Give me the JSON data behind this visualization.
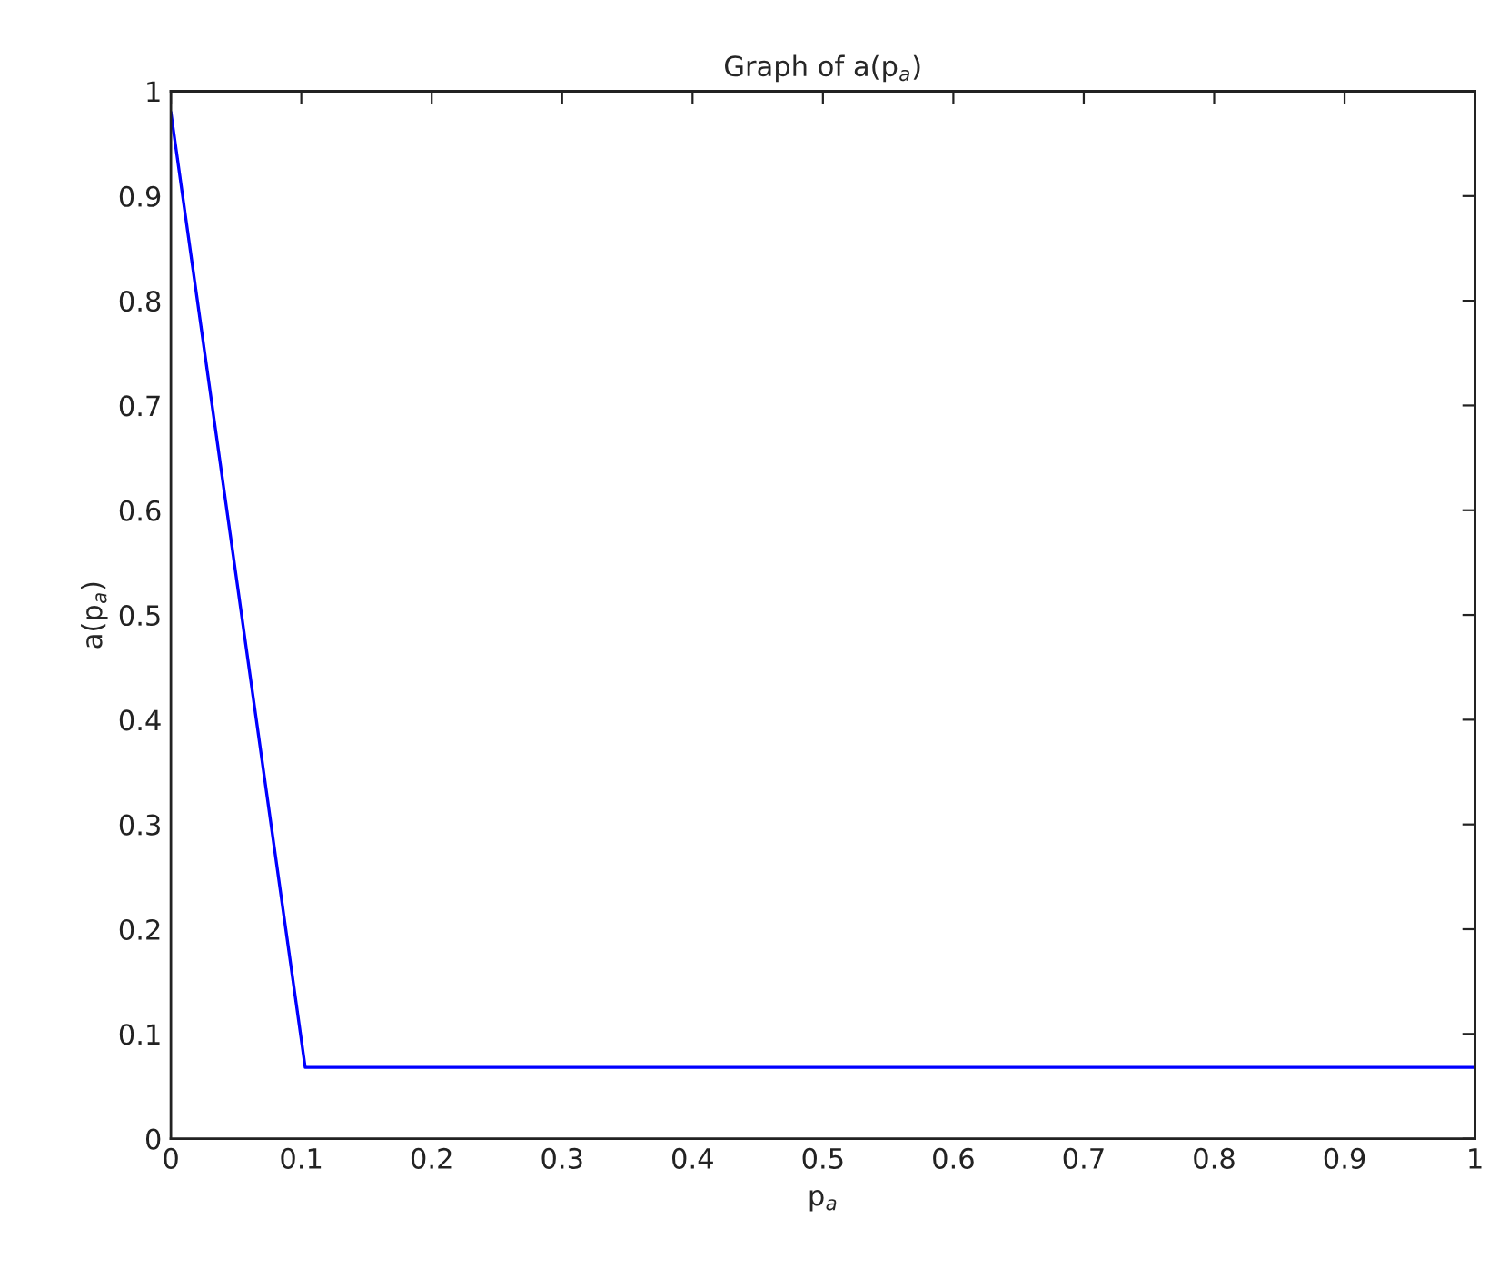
{
  "chart_data": {
    "type": "line",
    "title": "Graph of a(p$_{a}$)",
    "xlabel": "p$_{a}$",
    "ylabel": "a(p$_{a}$)",
    "x": [
      0,
      0.103,
      1
    ],
    "series": [
      {
        "color": "#0000ff",
        "values": [
          0.98,
          0.068,
          0.068
        ]
      }
    ],
    "xlim": [
      0,
      1
    ],
    "ylim": [
      0,
      1
    ],
    "xticks": [
      0,
      0.1,
      0.2,
      0.3,
      0.4,
      0.5,
      0.6,
      0.7,
      0.8,
      0.9,
      1
    ],
    "yticks": [
      0,
      0.1,
      0.2,
      0.3,
      0.4,
      0.5,
      0.6,
      0.7,
      0.8,
      0.9,
      1
    ],
    "grid": false
  }
}
